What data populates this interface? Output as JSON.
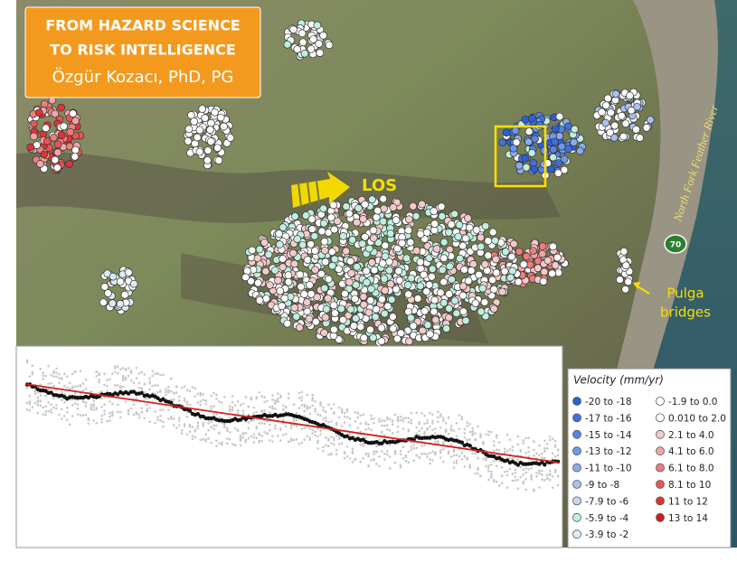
{
  "banner": {
    "line1": "FROM HAZARD SCIENCE",
    "line2": "TO RISK INTELLIGENCE",
    "author": "Özgür Kozacı, PhD, PG"
  },
  "map_labels": {
    "los": "LOS",
    "river": "North Fork Feather River",
    "highway": "70",
    "bridges": [
      "Pulga",
      "bridges"
    ]
  },
  "legend": {
    "title": "Velocity (mm/yr)",
    "items": [
      {
        "label": "-20 to -18",
        "color": "#2b5fd9"
      },
      {
        "label": "-17 to -16",
        "color": "#3f70e0"
      },
      {
        "label": "-15 to -14",
        "color": "#5783e6"
      },
      {
        "label": "-13 to -12",
        "color": "#7097ea"
      },
      {
        "label": "-11 to -10",
        "color": "#8cabee"
      },
      {
        "label": "-9 to -8",
        "color": "#a9c0f1"
      },
      {
        "label": "-7.9 to -6",
        "color": "#c6d5f4"
      },
      {
        "label": "-5.9 to -4",
        "color": "#bff0df"
      },
      {
        "label": "-3.9 to -2",
        "color": "#dcecf8"
      },
      {
        "label": "-1.9 to 0.0",
        "color": "#ffffff"
      },
      {
        "label": "0.010 to 2.0",
        "color": "#ffffff"
      },
      {
        "label": "2.1 to 4.0",
        "color": "#f6caca"
      },
      {
        "label": "4.1 to 6.0",
        "color": "#f2a5a5"
      },
      {
        "label": "6.1 to 8.0",
        "color": "#ee7d7d"
      },
      {
        "label": "8.1 to 10",
        "color": "#e85555"
      },
      {
        "label": "11 to 12",
        "color": "#e03333"
      },
      {
        "label": "13 to 14",
        "color": "#d41a1a"
      }
    ]
  }
}
